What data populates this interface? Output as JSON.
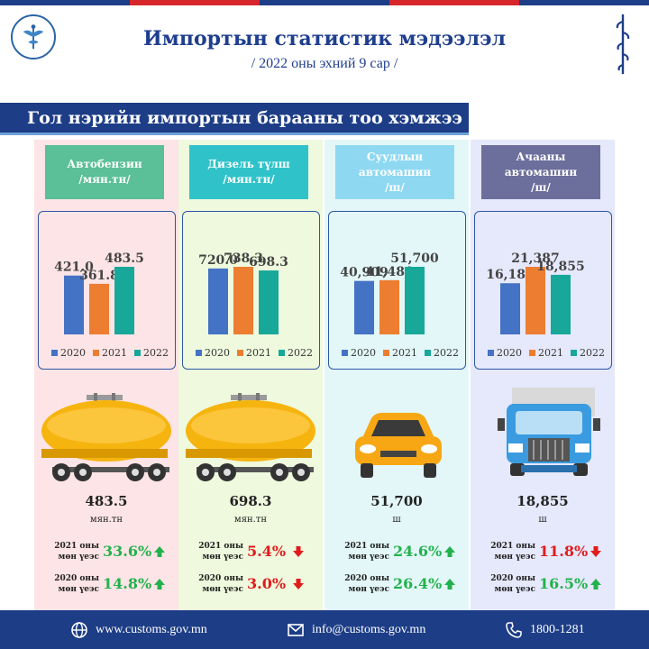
{
  "header": {
    "title": "Импортын статистик мэдээлэл",
    "subtitle": "/ 2022 оны эхний 9 сар /"
  },
  "section_title": "Гол нэрийн импортын барааны тоо хэмжээ",
  "colors": {
    "accent": "#1d3d86",
    "bar2020": "#4472c4",
    "bar2021": "#ed7d31",
    "bar2022": "#17a89a",
    "up": "#22b24c",
    "down": "#e21b1b"
  },
  "legend": [
    "2020",
    "2021",
    "2022"
  ],
  "columns": [
    {
      "name_line1": "Автобензин",
      "name_line2": "/мян.тн/",
      "chip_color": "#5bbf97",
      "bg_color": "#fde4e6",
      "values": [
        421.0,
        361.8,
        483.5
      ],
      "value_labels": [
        "421.0",
        "361.8",
        "483.5"
      ],
      "icon": "tanker-icon",
      "big_value": "483.5",
      "unit": "мян.тн",
      "stat1_line1": "2021 оны",
      "stat1_line2": "мөн үеэс",
      "stat1_pct": "33.6%",
      "stat1_dir": "up",
      "stat2_line1": "2020 оны",
      "stat2_line2": "мөн үеэс",
      "stat2_pct": "14.8%",
      "stat2_dir": "up"
    },
    {
      "name_line1": "Дизель түлш",
      "name_line2": "/мян.тн/",
      "chip_color": "#2fc3c9",
      "bg_color": "#eef9dd",
      "values": [
        720.0,
        738.3,
        698.3
      ],
      "value_labels": [
        "720.0",
        "738.3",
        "698.3"
      ],
      "icon": "tanker-icon",
      "big_value": "698.3",
      "unit": "мян.тн",
      "stat1_line1": "2021 оны",
      "stat1_line2": "мөн үеэс",
      "stat1_pct": "5.4%",
      "stat1_dir": "down",
      "stat2_line1": "2020 оны",
      "stat2_line2": "мөн үеэс",
      "stat2_pct": "3.0%",
      "stat2_dir": "down"
    },
    {
      "name_line1": "Суудлын",
      "name_line2": "автомашин",
      "name_line3": "/ш/",
      "chip_color": "#8fd8f2",
      "bg_color": "#e3f7f8",
      "values": [
        40909,
        41481,
        51700
      ],
      "value_labels": [
        "40,909",
        "41,481",
        "51,700"
      ],
      "icon": "car-icon",
      "big_value": "51,700",
      "unit": "ш",
      "stat1_line1": "2021 оны",
      "stat1_line2": "мөн үеэс",
      "stat1_pct": "24.6%",
      "stat1_dir": "up",
      "stat2_line1": "2020 оны",
      "stat2_line2": "мөн үеэс",
      "stat2_pct": "26.4%",
      "stat2_dir": "up"
    },
    {
      "name_line1": "Ачааны",
      "name_line2": "автомашин",
      "name_line3": "/ш/",
      "chip_color": "#6c6f9c",
      "bg_color": "#e6e8fb",
      "values": [
        16189,
        21387,
        18855
      ],
      "value_labels": [
        "16,189",
        "21,387",
        "18,855"
      ],
      "icon": "truck-icon",
      "big_value": "18,855",
      "unit": "ш",
      "stat1_line1": "2021 оны",
      "stat1_line2": "мөн үеэс",
      "stat1_pct": "11.8%",
      "stat1_dir": "down",
      "stat2_line1": "2020 оны",
      "stat2_line2": "мөн үеэс",
      "stat2_pct": "16.5%",
      "stat2_dir": "up"
    }
  ],
  "chart_data": [
    {
      "type": "bar",
      "categories": [
        "2020",
        "2021",
        "2022"
      ],
      "values": [
        421.0,
        361.8,
        483.5
      ],
      "title": "Автобензин /мян.тн/"
    },
    {
      "type": "bar",
      "categories": [
        "2020",
        "2021",
        "2022"
      ],
      "values": [
        720.0,
        738.3,
        698.3
      ],
      "title": "Дизель түлш /мян.тн/"
    },
    {
      "type": "bar",
      "categories": [
        "2020",
        "2021",
        "2022"
      ],
      "values": [
        40909,
        41481,
        51700
      ],
      "title": "Суудлын автомашин /ш/"
    },
    {
      "type": "bar",
      "categories": [
        "2020",
        "2021",
        "2022"
      ],
      "values": [
        16189,
        21387,
        18855
      ],
      "title": "Ачааны автомашин /ш/"
    }
  ],
  "footer": {
    "website": "www.customs.gov.mn",
    "email": "info@customs.gov.mn",
    "phone": "1800-1281"
  }
}
